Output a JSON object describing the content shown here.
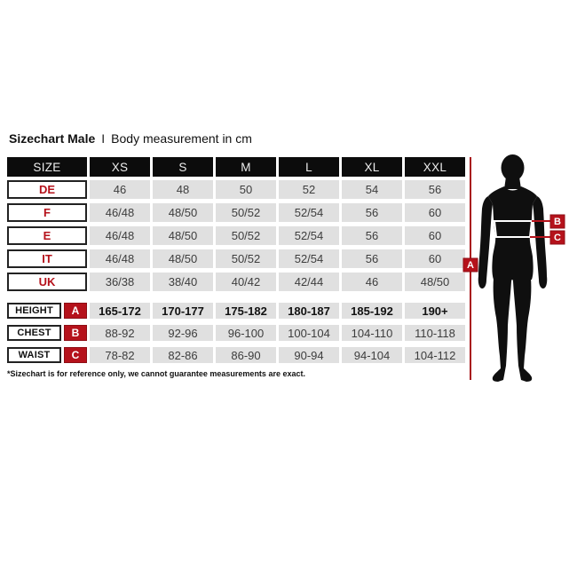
{
  "header": {
    "title": "Sizechart Male",
    "separator": "I",
    "subtitle": "Body measurement in cm"
  },
  "chart_data": {
    "type": "table",
    "title": "Sizechart Male",
    "subtitle": "Body measurement in cm",
    "columns": [
      "SIZE",
      "XS",
      "S",
      "M",
      "L",
      "XL",
      "XXL"
    ],
    "country_rows": [
      {
        "label": "DE",
        "values": [
          "46",
          "48",
          "50",
          "52",
          "54",
          "56"
        ]
      },
      {
        "label": "F",
        "values": [
          "46/48",
          "48/50",
          "50/52",
          "52/54",
          "56",
          "60"
        ]
      },
      {
        "label": "E",
        "values": [
          "46/48",
          "48/50",
          "50/52",
          "52/54",
          "56",
          "60"
        ]
      },
      {
        "label": "IT",
        "values": [
          "46/48",
          "48/50",
          "50/52",
          "52/54",
          "56",
          "60"
        ]
      },
      {
        "label": "UK",
        "values": [
          "36/38",
          "38/40",
          "40/42",
          "42/44",
          "46",
          "48/50"
        ]
      }
    ],
    "measurement_rows": [
      {
        "label": "HEIGHT",
        "marker": "A",
        "bold": true,
        "values": [
          "165-172",
          "170-177",
          "175-182",
          "180-187",
          "185-192",
          "190+"
        ]
      },
      {
        "label": "CHEST",
        "marker": "B",
        "bold": false,
        "values": [
          "88-92",
          "92-96",
          "96-100",
          "100-104",
          "104-110",
          "110-118"
        ]
      },
      {
        "label": "WAIST",
        "marker": "C",
        "bold": false,
        "values": [
          "78-82",
          "82-86",
          "86-90",
          "90-94",
          "94-104",
          "104-112"
        ]
      }
    ]
  },
  "figure": {
    "markers": [
      "A",
      "B",
      "C"
    ]
  },
  "footnote": "*Sizechart is for reference only, we cannot guarantee measurements are exact.",
  "colors": {
    "accent_red": "#b5121b",
    "header_bg": "#0c0c0c",
    "cell_bg": "#e0e0e0",
    "cell_text": "#3d3d3d",
    "silhouette": "#0f0f0f"
  }
}
